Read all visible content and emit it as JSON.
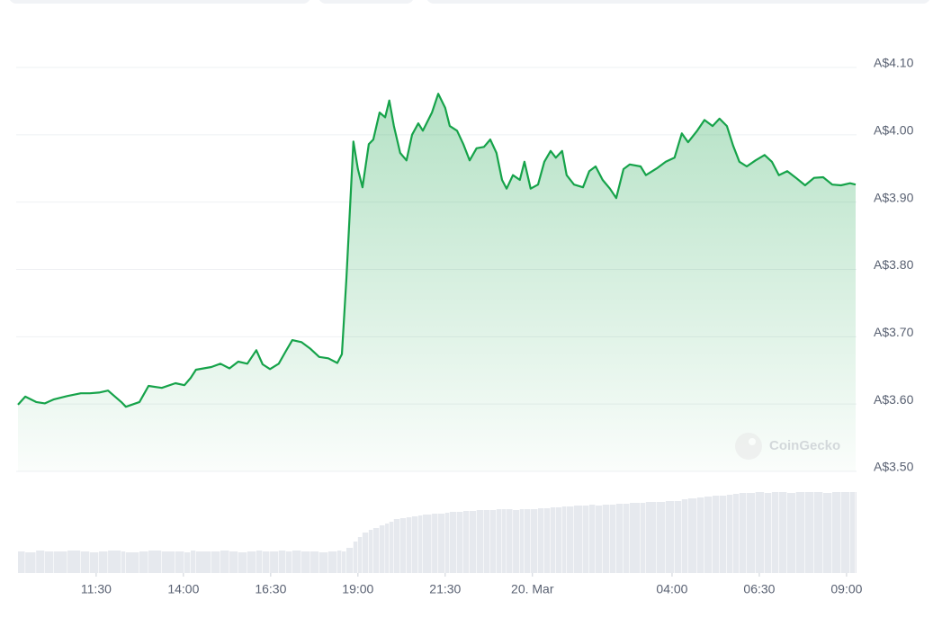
{
  "chart_data": {
    "type": "area",
    "color": "#16a34a",
    "watermark": "CoinGecko",
    "x": [
      9.26,
      9.47,
      9.78,
      10.03,
      10.29,
      10.68,
      11.06,
      11.32,
      11.58,
      11.84,
      12.22,
      12.35,
      12.74,
      13.0,
      13.38,
      13.77,
      14.03,
      14.21,
      14.36,
      14.8,
      15.06,
      15.32,
      15.57,
      15.83,
      16.09,
      16.27,
      16.48,
      16.73,
      16.94,
      17.12,
      17.38,
      17.64,
      17.89,
      18.15,
      18.41,
      18.54,
      18.67,
      18.87,
      19.0,
      19.13,
      19.31,
      19.44,
      19.62,
      19.78,
      19.9,
      20.03,
      20.21,
      20.39,
      20.55,
      20.73,
      20.86,
      21.12,
      21.3,
      21.5,
      21.63,
      21.84,
      22.02,
      22.2,
      22.4,
      22.61,
      22.79,
      22.97,
      23.13,
      23.26,
      23.44,
      23.64,
      23.77,
      23.95,
      24.16,
      24.34,
      24.52,
      24.67,
      24.85,
      24.98,
      25.19,
      25.45,
      25.63,
      25.81,
      26.01,
      26.22,
      26.4,
      26.61,
      26.79,
      27.1,
      27.25,
      27.56,
      27.82,
      28.07,
      28.28,
      28.46,
      28.72,
      28.93,
      29.16,
      29.36,
      29.57,
      29.75,
      29.93,
      30.14,
      30.39,
      30.65,
      30.86,
      31.06,
      31.3,
      31.55,
      31.81,
      32.07,
      32.33,
      32.59,
      32.84,
      33.1,
      33.26
    ],
    "values": [
      3.599,
      3.611,
      3.603,
      3.601,
      3.607,
      3.612,
      3.616,
      3.616,
      3.617,
      3.62,
      3.603,
      3.596,
      3.603,
      3.627,
      3.624,
      3.631,
      3.628,
      3.639,
      3.651,
      3.655,
      3.66,
      3.653,
      3.663,
      3.66,
      3.68,
      3.659,
      3.652,
      3.66,
      3.679,
      3.695,
      3.692,
      3.682,
      3.67,
      3.668,
      3.661,
      3.674,
      3.786,
      3.99,
      3.949,
      3.922,
      3.986,
      3.993,
      4.033,
      4.026,
      4.051,
      4.013,
      3.973,
      3.962,
      4.0,
      4.017,
      4.006,
      4.033,
      4.061,
      4.04,
      4.013,
      4.006,
      3.986,
      3.962,
      3.98,
      3.982,
      3.993,
      3.973,
      3.933,
      3.92,
      3.94,
      3.933,
      3.96,
      3.92,
      3.926,
      3.96,
      3.976,
      3.966,
      3.976,
      3.94,
      3.926,
      3.922,
      3.946,
      3.953,
      3.933,
      3.92,
      3.906,
      3.949,
      3.956,
      3.953,
      3.94,
      3.95,
      3.96,
      3.966,
      4.002,
      3.989,
      4.006,
      4.022,
      4.013,
      4.024,
      4.013,
      3.984,
      3.96,
      3.953,
      3.962,
      3.97,
      3.96,
      3.94,
      3.946,
      3.936,
      3.925,
      3.936,
      3.937,
      3.926,
      3.925,
      3.928,
      3.926
    ],
    "volume": {
      "values": [
        24,
        23,
        25,
        24,
        24,
        25,
        24,
        23,
        24,
        25,
        24,
        23,
        24,
        25,
        24,
        24,
        23,
        25,
        24,
        24,
        25,
        24,
        23,
        24,
        25,
        24,
        24,
        25,
        24,
        25,
        24,
        24,
        23,
        24,
        25,
        24,
        28,
        35,
        40,
        45,
        48,
        50,
        53,
        55,
        57,
        60,
        61,
        62,
        63,
        64,
        65,
        66,
        66,
        67,
        68,
        68,
        69,
        69,
        70,
        70,
        70,
        71,
        71,
        71,
        70,
        71,
        71,
        71,
        72,
        72,
        73,
        73,
        74,
        74,
        75,
        75,
        76,
        75,
        76,
        76,
        77,
        77,
        78,
        78,
        79,
        79,
        80,
        80,
        82,
        83,
        84,
        85,
        86,
        86,
        87,
        88,
        89,
        89,
        90,
        89,
        90,
        90,
        89,
        90,
        90,
        90,
        89,
        90,
        90,
        90,
        90
      ]
    },
    "xlim": [
      9.26,
      33.26
    ],
    "xticks": [
      {
        "value": 11.5,
        "label": "11:30"
      },
      {
        "value": 14,
        "label": "14:00"
      },
      {
        "value": 16.5,
        "label": "16:30"
      },
      {
        "value": 19,
        "label": "19:00"
      },
      {
        "value": 21.5,
        "label": "21:30"
      },
      {
        "value": 24,
        "label": "20. Mar"
      },
      {
        "value": 28,
        "label": "04:00"
      },
      {
        "value": 30.5,
        "label": "06:30"
      },
      {
        "value": 33,
        "label": "09:00"
      }
    ],
    "ylim": [
      3.5,
      4.1
    ],
    "yticks": [
      {
        "value": 3.5,
        "label": "A$3.50"
      },
      {
        "value": 3.6,
        "label": "A$3.60"
      },
      {
        "value": 3.7,
        "label": "A$3.70"
      },
      {
        "value": 3.8,
        "label": "A$3.80"
      },
      {
        "value": 3.9,
        "label": "A$3.90"
      },
      {
        "value": 4.0,
        "label": "A$4.00"
      },
      {
        "value": 4.1,
        "label": "A$4.10"
      }
    ],
    "y2lim": [
      0,
      100
    ],
    "grid": true
  }
}
